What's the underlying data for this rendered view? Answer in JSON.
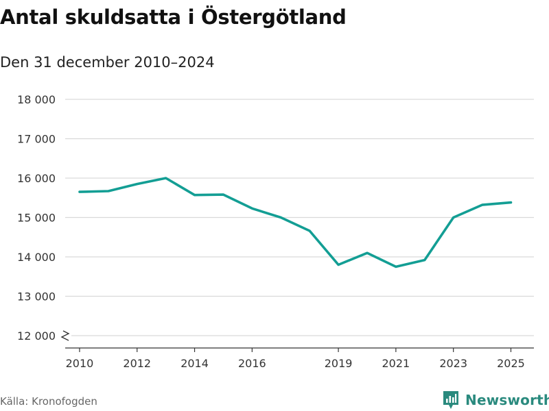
{
  "title": "Antal skuldsatta i Östergötland",
  "subtitle": "Den 31 december 2010–2024",
  "source": "Källa: Kronofogden",
  "brand": {
    "name": "Newsworthy",
    "icon": "newsworthy-logo-icon"
  },
  "colors": {
    "line": "#139e94",
    "grid": "#d9d9d9",
    "axis": "#333333",
    "brand": "#2a8a7e"
  },
  "chart_data": {
    "type": "line",
    "title": "Antal skuldsatta i Östergötland",
    "subtitle": "Den 31 december 2010–2024",
    "xlabel": "",
    "ylabel": "",
    "x": [
      2010,
      2011,
      2012,
      2013,
      2014,
      2015,
      2016,
      2017,
      2018,
      2019,
      2020,
      2021,
      2022,
      2023,
      2024,
      2025
    ],
    "values": [
      15650,
      15670,
      15850,
      16000,
      15570,
      15580,
      15230,
      15000,
      14660,
      13800,
      14100,
      13750,
      13920,
      15000,
      15320,
      15380
    ],
    "xticks": [
      2010,
      2012,
      2014,
      2016,
      2019,
      2021,
      2023,
      2025
    ],
    "xtick_labels": [
      "2010",
      "2012",
      "2014",
      "2016",
      "2019",
      "2021",
      "2023",
      "2025"
    ],
    "yticks": [
      12000,
      13000,
      14000,
      15000,
      16000,
      17000,
      18000
    ],
    "ytick_labels": [
      "12 000",
      "13 000",
      "14 000",
      "15 000",
      "16 000",
      "17 000",
      "18 000"
    ],
    "xlim": [
      2009.5,
      2025.8
    ],
    "ylim": [
      12000,
      18000
    ],
    "axis_break": true,
    "grid": true
  }
}
